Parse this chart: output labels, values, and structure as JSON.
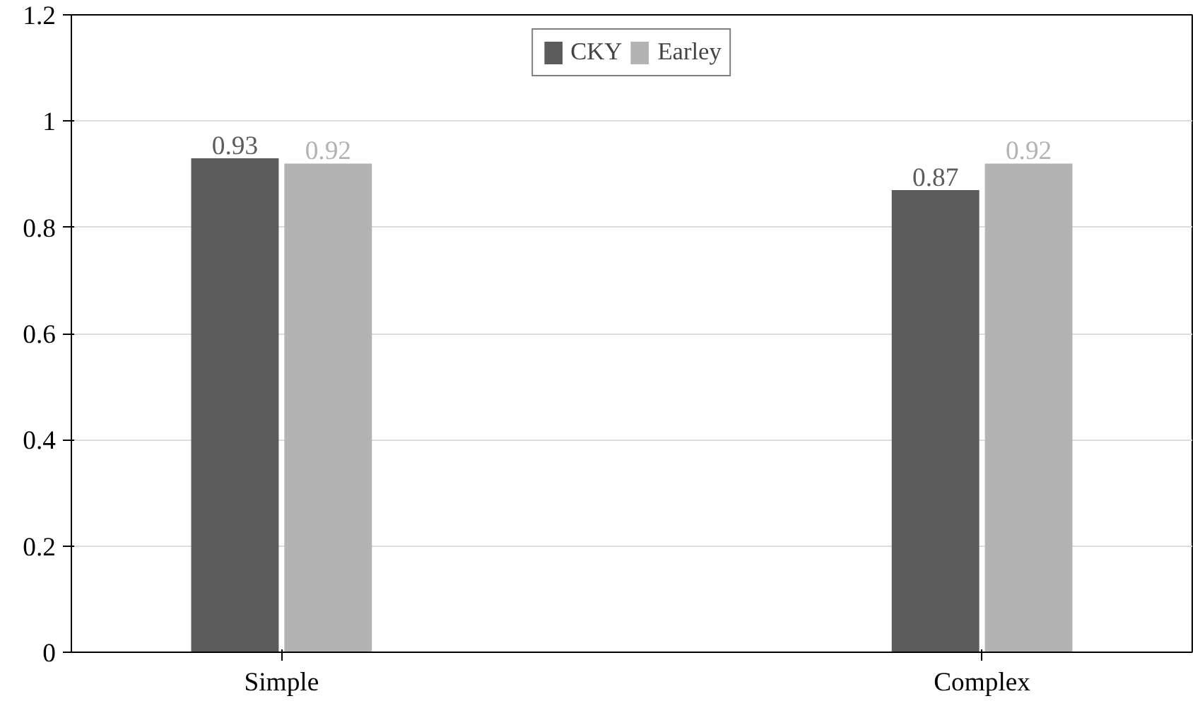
{
  "chart_data": {
    "type": "bar",
    "categories": [
      "Simple",
      "Complex"
    ],
    "series": [
      {
        "name": "CKY",
        "color": "#5c5c5c",
        "values": [
          0.93,
          0.87
        ]
      },
      {
        "name": "Earley",
        "color": "#b3b3b3",
        "values": [
          0.92,
          0.92
        ]
      }
    ],
    "ylim": [
      0,
      1.2
    ],
    "yticks": [
      0,
      0.2,
      0.4,
      0.6,
      0.8,
      1,
      1.2
    ],
    "grid": "y",
    "legend": "top",
    "data_labels": true
  }
}
